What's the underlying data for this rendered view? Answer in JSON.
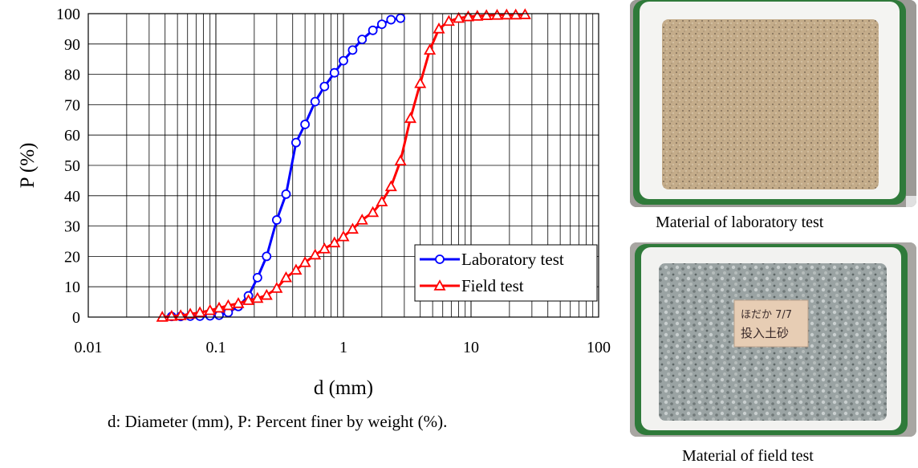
{
  "chart_data": {
    "type": "line",
    "xlabel": "d (mm)",
    "ylabel": "P (%)",
    "xscale": "log",
    "xlim": [
      0.01,
      100
    ],
    "ylim": [
      0,
      100
    ],
    "x_ticks": [
      "0.01",
      "0.1",
      "1",
      "10",
      "100"
    ],
    "y_ticks": [
      "0",
      "10",
      "20",
      "30",
      "40",
      "50",
      "60",
      "70",
      "80",
      "90",
      "100"
    ],
    "grid": true,
    "legend_position": "bottom-right",
    "series": [
      {
        "name": "Laboratory test",
        "color": "#0000ff",
        "marker": "circle",
        "x": [
          0.045,
          0.053,
          0.063,
          0.075,
          0.09,
          0.106,
          0.125,
          0.15,
          0.18,
          0.212,
          0.25,
          0.3,
          0.355,
          0.425,
          0.5,
          0.6,
          0.71,
          0.85,
          1.0,
          1.18,
          1.4,
          1.7,
          2.0,
          2.36,
          2.8
        ],
        "y": [
          0.2,
          0.2,
          0.3,
          0.3,
          0.4,
          0.6,
          1.5,
          3.5,
          7.0,
          13.0,
          20.0,
          32.0,
          40.5,
          57.5,
          63.5,
          71.0,
          76.0,
          80.5,
          84.5,
          88.0,
          91.5,
          94.5,
          96.5,
          98.0,
          98.5
        ]
      },
      {
        "name": "Field test",
        "color": "#ff0000",
        "marker": "triangle",
        "x": [
          0.038,
          0.045,
          0.053,
          0.063,
          0.075,
          0.09,
          0.106,
          0.125,
          0.15,
          0.18,
          0.212,
          0.25,
          0.3,
          0.355,
          0.425,
          0.5,
          0.6,
          0.71,
          0.85,
          1.0,
          1.18,
          1.4,
          1.7,
          2.0,
          2.36,
          2.8,
          3.35,
          4.0,
          4.75,
          5.6,
          6.7,
          8.0,
          9.5,
          11.2,
          13.2,
          16.0,
          19.0,
          22.4,
          26.5
        ],
        "y": [
          0.0,
          0.3,
          0.5,
          1.0,
          1.5,
          2.2,
          3.0,
          3.8,
          4.5,
          5.5,
          6.2,
          7.2,
          9.5,
          13.0,
          15.5,
          18.0,
          20.5,
          22.5,
          24.5,
          26.5,
          29.0,
          32.0,
          34.5,
          38.0,
          43.0,
          51.5,
          65.5,
          77.0,
          88.0,
          95.0,
          97.5,
          98.5,
          99.0,
          99.2,
          99.4,
          99.5,
          99.6,
          99.6,
          99.7
        ]
      }
    ]
  },
  "figure_caption": "d: Diameter (mm), P: Percent finer by weight (%).",
  "photos": [
    {
      "caption": "Material of laboratory test"
    },
    {
      "caption": "Material of field test",
      "label": "ほだか 7/7 投入土砂"
    }
  ]
}
